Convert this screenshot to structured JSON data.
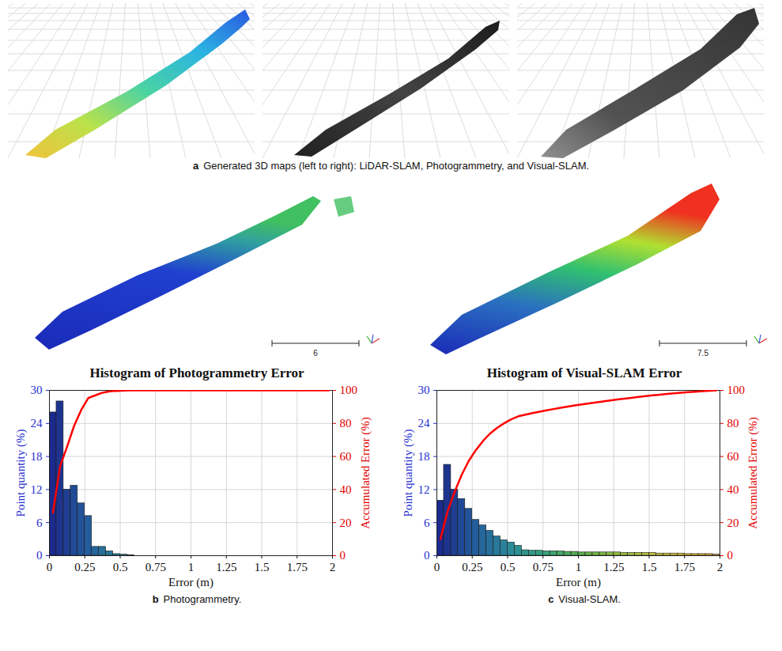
{
  "figure": [
    {
      "label": "a",
      "caption": "Generated 3D maps (left to right): LiDAR-SLAM, Photogrammetry, and Visual-SLAM."
    },
    {
      "label": "b",
      "caption": "Photogrammetry.",
      "scale_bar": 6
    },
    {
      "label": "c",
      "caption": "Visual-SLAM.",
      "scale_bar": 7.5
    }
  ],
  "chart_data": [
    {
      "type": "histogram",
      "title": "Histogram of Photogrammetry Error",
      "xlabel": "Error (m)",
      "ylabel": "Point quantity (%)",
      "y2label": "Accumulated Error (%)",
      "xlim": [
        0,
        2
      ],
      "xticks": [
        0,
        0.25,
        0.5,
        0.75,
        1,
        1.25,
        1.5,
        1.75,
        2
      ],
      "ylim": [
        0,
        30
      ],
      "yticks": [
        0,
        6,
        12,
        18,
        24,
        30
      ],
      "y2lim": [
        0,
        100
      ],
      "y2ticks": [
        0,
        20,
        40,
        60,
        80,
        100
      ],
      "grid": true,
      "bins": [
        0,
        0.05,
        0.1,
        0.15,
        0.2,
        0.25,
        0.3,
        0.35,
        0.4,
        0.45,
        0.5,
        0.55,
        0.6,
        0.65,
        0.7,
        0.75,
        0.8,
        0.85,
        0.9,
        0.95,
        1,
        1.05,
        1.1,
        1.15,
        1.2,
        1.25,
        1.3,
        1.35,
        1.4,
        1.45,
        1.5,
        1.55,
        1.6,
        1.65,
        1.7,
        1.75,
        1.8,
        1.85,
        1.9,
        1.95,
        2
      ],
      "series": [
        {
          "type": "bar",
          "values": [
            26,
            28,
            12,
            12.7,
            9.5,
            7.2,
            1.6,
            1.6,
            0.8,
            0.3,
            0.2,
            0.1,
            0,
            0,
            0,
            0,
            0,
            0,
            0,
            0,
            0,
            0,
            0,
            0,
            0,
            0,
            0,
            0,
            0,
            0,
            0,
            0,
            0,
            0,
            0,
            0,
            0,
            0,
            0,
            0
          ],
          "colors": [
            "#1b2a8c",
            "#1d348f",
            "#1f3e92",
            "#204996",
            "#225399",
            "#245d9c",
            "#25669b",
            "#266f9a",
            "#28789a",
            "#298199",
            "#2a8a98",
            "#2c8f92",
            "#2e948c",
            "#309986",
            "#329e80",
            "#34a37a",
            "#3ca671",
            "#44a868",
            "#4cab60",
            "#54ad57",
            "#5cb04e",
            "#67b24c",
            "#72b449",
            "#7db747",
            "#88b944",
            "#93bb42",
            "#9cbc41",
            "#a6be40",
            "#afbf3e",
            "#b9c13d",
            "#c2c23c",
            "#c8c03c",
            "#cebf3b",
            "#d4bd3b",
            "#dabb3a",
            "#e0b93a",
            "#e2b53a",
            "#e4b03a",
            "#e6ac3a",
            "#e8a83a"
          ]
        },
        {
          "type": "line",
          "axis": "y2",
          "color": "#ff0000",
          "x": [
            0.025,
            0.075,
            0.125,
            0.175,
            0.225,
            0.275,
            0.325,
            0.375,
            0.425,
            0.475,
            0.525,
            0.575,
            0.625,
            0.675,
            0.725,
            0.775,
            0.825,
            0.875,
            0.925,
            0.975,
            1.025,
            1.075,
            1.125,
            1.175,
            1.225,
            1.275,
            1.325,
            1.375,
            1.425,
            1.475,
            1.525,
            1.575,
            1.625,
            1.675,
            1.725,
            1.775,
            1.825,
            1.875,
            1.925,
            1.975
          ],
          "values": [
            26,
            54,
            66,
            78.7,
            88.2,
            95.4,
            97,
            98.6,
            99.4,
            99.7,
            99.9,
            100,
            100,
            100,
            100,
            100,
            100,
            100,
            100,
            100,
            100,
            100,
            100,
            100,
            100,
            100,
            100,
            100,
            100,
            100,
            100,
            100,
            100,
            100,
            100,
            100,
            100,
            100,
            100,
            100
          ]
        }
      ]
    },
    {
      "type": "histogram",
      "title": "Histogram of Visual-SLAM Error",
      "xlabel": "Error (m)",
      "ylabel": "Point quantity (%)",
      "y2label": "Accumulated Error (%)",
      "xlim": [
        0,
        2
      ],
      "xticks": [
        0,
        0.25,
        0.5,
        0.75,
        1,
        1.25,
        1.5,
        1.75,
        2
      ],
      "ylim": [
        0,
        30
      ],
      "yticks": [
        0,
        6,
        12,
        18,
        24,
        30
      ],
      "y2lim": [
        0,
        100
      ],
      "y2ticks": [
        0,
        20,
        40,
        60,
        80,
        100
      ],
      "grid": true,
      "bins": [
        0,
        0.05,
        0.1,
        0.15,
        0.2,
        0.25,
        0.3,
        0.35,
        0.4,
        0.45,
        0.5,
        0.55,
        0.6,
        0.65,
        0.7,
        0.75,
        0.8,
        0.85,
        0.9,
        0.95,
        1,
        1.05,
        1.1,
        1.15,
        1.2,
        1.25,
        1.3,
        1.35,
        1.4,
        1.45,
        1.5,
        1.55,
        1.6,
        1.65,
        1.7,
        1.75,
        1.8,
        1.85,
        1.9,
        1.95,
        2
      ],
      "series": [
        {
          "type": "bar",
          "values": [
            10,
            16.5,
            12,
            10.3,
            8.5,
            6.5,
            5.5,
            4.5,
            3.5,
            2.8,
            2.4,
            1.8,
            1.0,
            0.9,
            0.9,
            0.8,
            0.8,
            0.8,
            0.7,
            0.7,
            0.6,
            0.6,
            0.6,
            0.6,
            0.6,
            0.6,
            0.5,
            0.5,
            0.5,
            0.5,
            0.5,
            0.4,
            0.4,
            0.4,
            0.4,
            0.3,
            0.3,
            0.3,
            0.3,
            0.2
          ],
          "colors": [
            "#1b2a8c",
            "#1d348f",
            "#1f3e92",
            "#204996",
            "#225399",
            "#245d9c",
            "#25669b",
            "#266f9a",
            "#28789a",
            "#298199",
            "#2a8a98",
            "#2c8f92",
            "#2e948c",
            "#309986",
            "#329e80",
            "#34a37a",
            "#3ca671",
            "#44a868",
            "#4cab60",
            "#54ad57",
            "#5cb04e",
            "#67b24c",
            "#72b449",
            "#7db747",
            "#88b944",
            "#93bb42",
            "#9cbc41",
            "#a6be40",
            "#afbf3e",
            "#b9c13d",
            "#c2c23c",
            "#c8c03c",
            "#cebf3b",
            "#d4bd3b",
            "#dabb3a",
            "#e0b93a",
            "#e2b53a",
            "#e4b03a",
            "#e6ac3a",
            "#e8a83a"
          ]
        },
        {
          "type": "line",
          "axis": "y2",
          "color": "#ff0000",
          "x": [
            0.025,
            0.075,
            0.125,
            0.175,
            0.225,
            0.275,
            0.325,
            0.375,
            0.425,
            0.475,
            0.525,
            0.575,
            0.625,
            0.675,
            0.725,
            0.775,
            0.825,
            0.875,
            0.925,
            0.975,
            1.025,
            1.075,
            1.125,
            1.175,
            1.225,
            1.275,
            1.325,
            1.375,
            1.425,
            1.475,
            1.525,
            1.575,
            1.625,
            1.675,
            1.725,
            1.775,
            1.825,
            1.875,
            1.925,
            1.975
          ],
          "values": [
            10,
            26.5,
            38.5,
            48.8,
            57.3,
            63.8,
            69.3,
            73.8,
            77.3,
            80.1,
            82.5,
            84.3,
            85.3,
            86.2,
            87.1,
            87.9,
            88.7,
            89.5,
            90.2,
            90.9,
            91.5,
            92.1,
            92.7,
            93.3,
            93.9,
            94.5,
            95.0,
            95.5,
            96.0,
            96.5,
            97.0,
            97.4,
            97.8,
            98.2,
            98.6,
            98.9,
            99.2,
            99.5,
            99.8,
            100
          ]
        }
      ]
    }
  ]
}
